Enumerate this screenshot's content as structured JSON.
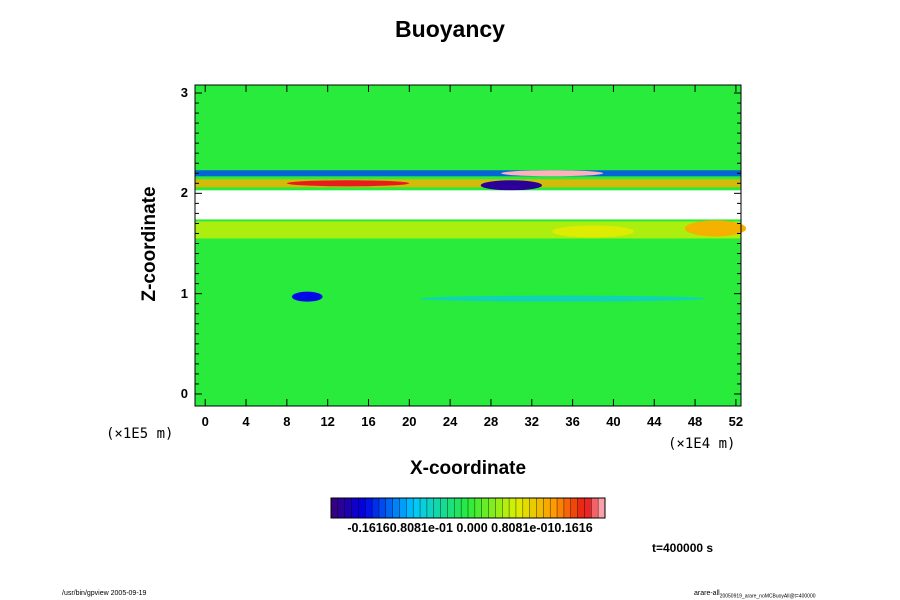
{
  "chart_data": {
    "type": "heatmap",
    "title": "Buoyancy",
    "xlabel": "X-coordinate",
    "ylabel": "Z-coordinate",
    "x_unit": "(×1E4 m)",
    "z_unit": "(×1E5 m)",
    "xlim": [
      -1,
      52.5
    ],
    "ylim": [
      -0.12,
      3.08
    ],
    "x_ticks": [
      0,
      4,
      8,
      12,
      16,
      20,
      24,
      28,
      32,
      36,
      40,
      44,
      48,
      52
    ],
    "y_ticks": [
      0,
      1,
      2,
      3
    ],
    "x_tick_labels": [
      "0",
      "4",
      "8",
      "12",
      "16",
      "20",
      "24",
      "28",
      "32",
      "36",
      "40",
      "44",
      "48",
      "52"
    ],
    "y_tick_labels": [
      "0",
      "1",
      "2",
      "3"
    ],
    "colorbar": {
      "min": -0.1616,
      "max": 0.1616,
      "tick_labels": [
        "-0.1616",
        "-0.8081e-01",
        "0.000",
        "0.8081e-01",
        "0.1616"
      ],
      "label_text": "-0.16160.8081e-01 0.000 0.8081e-010.1616"
    },
    "features": [
      {
        "type": "gap",
        "z_min": 1.74,
        "z_max": 2.03,
        "value": null
      },
      {
        "type": "band",
        "x_min": -1,
        "x_max": 52.5,
        "z_min": 2.06,
        "z_max": 2.14,
        "value": 0.09
      },
      {
        "type": "band",
        "x_min": -1,
        "x_max": 52.5,
        "z_min": 2.17,
        "z_max": 2.23,
        "value": -0.1
      },
      {
        "type": "band",
        "x_min": -1,
        "x_max": 52.5,
        "z_min": 1.55,
        "z_max": 1.72,
        "value": 0.05
      },
      {
        "type": "blob",
        "x": 14,
        "z": 2.1,
        "rx": 6,
        "rz": 0.03,
        "value": 0.14
      },
      {
        "type": "blob",
        "x": 34,
        "z": 2.2,
        "rx": 5,
        "rz": 0.03,
        "value": 0.16
      },
      {
        "type": "blob",
        "x": 30,
        "z": 2.08,
        "rx": 3,
        "rz": 0.05,
        "value": -0.15
      },
      {
        "type": "blob",
        "x": 10,
        "z": 0.97,
        "rx": 1.5,
        "rz": 0.05,
        "value": -0.12
      },
      {
        "type": "blob",
        "x": 50,
        "z": 1.65,
        "rx": 3,
        "rz": 0.08,
        "value": 0.09
      },
      {
        "type": "blob",
        "x": 38,
        "z": 1.62,
        "rx": 4,
        "rz": 0.06,
        "value": 0.06
      },
      {
        "type": "blob",
        "x": 35,
        "z": 0.95,
        "rx": 14,
        "rz": 0.03,
        "value": -0.04
      }
    ],
    "time_label": "t=400000 s"
  },
  "footer": {
    "left": "/usr/bin/gpview 2005-09-19",
    "right": "arare-all",
    "right_sub": "20050919_arare_noMCBuoyAll@t=400000"
  }
}
